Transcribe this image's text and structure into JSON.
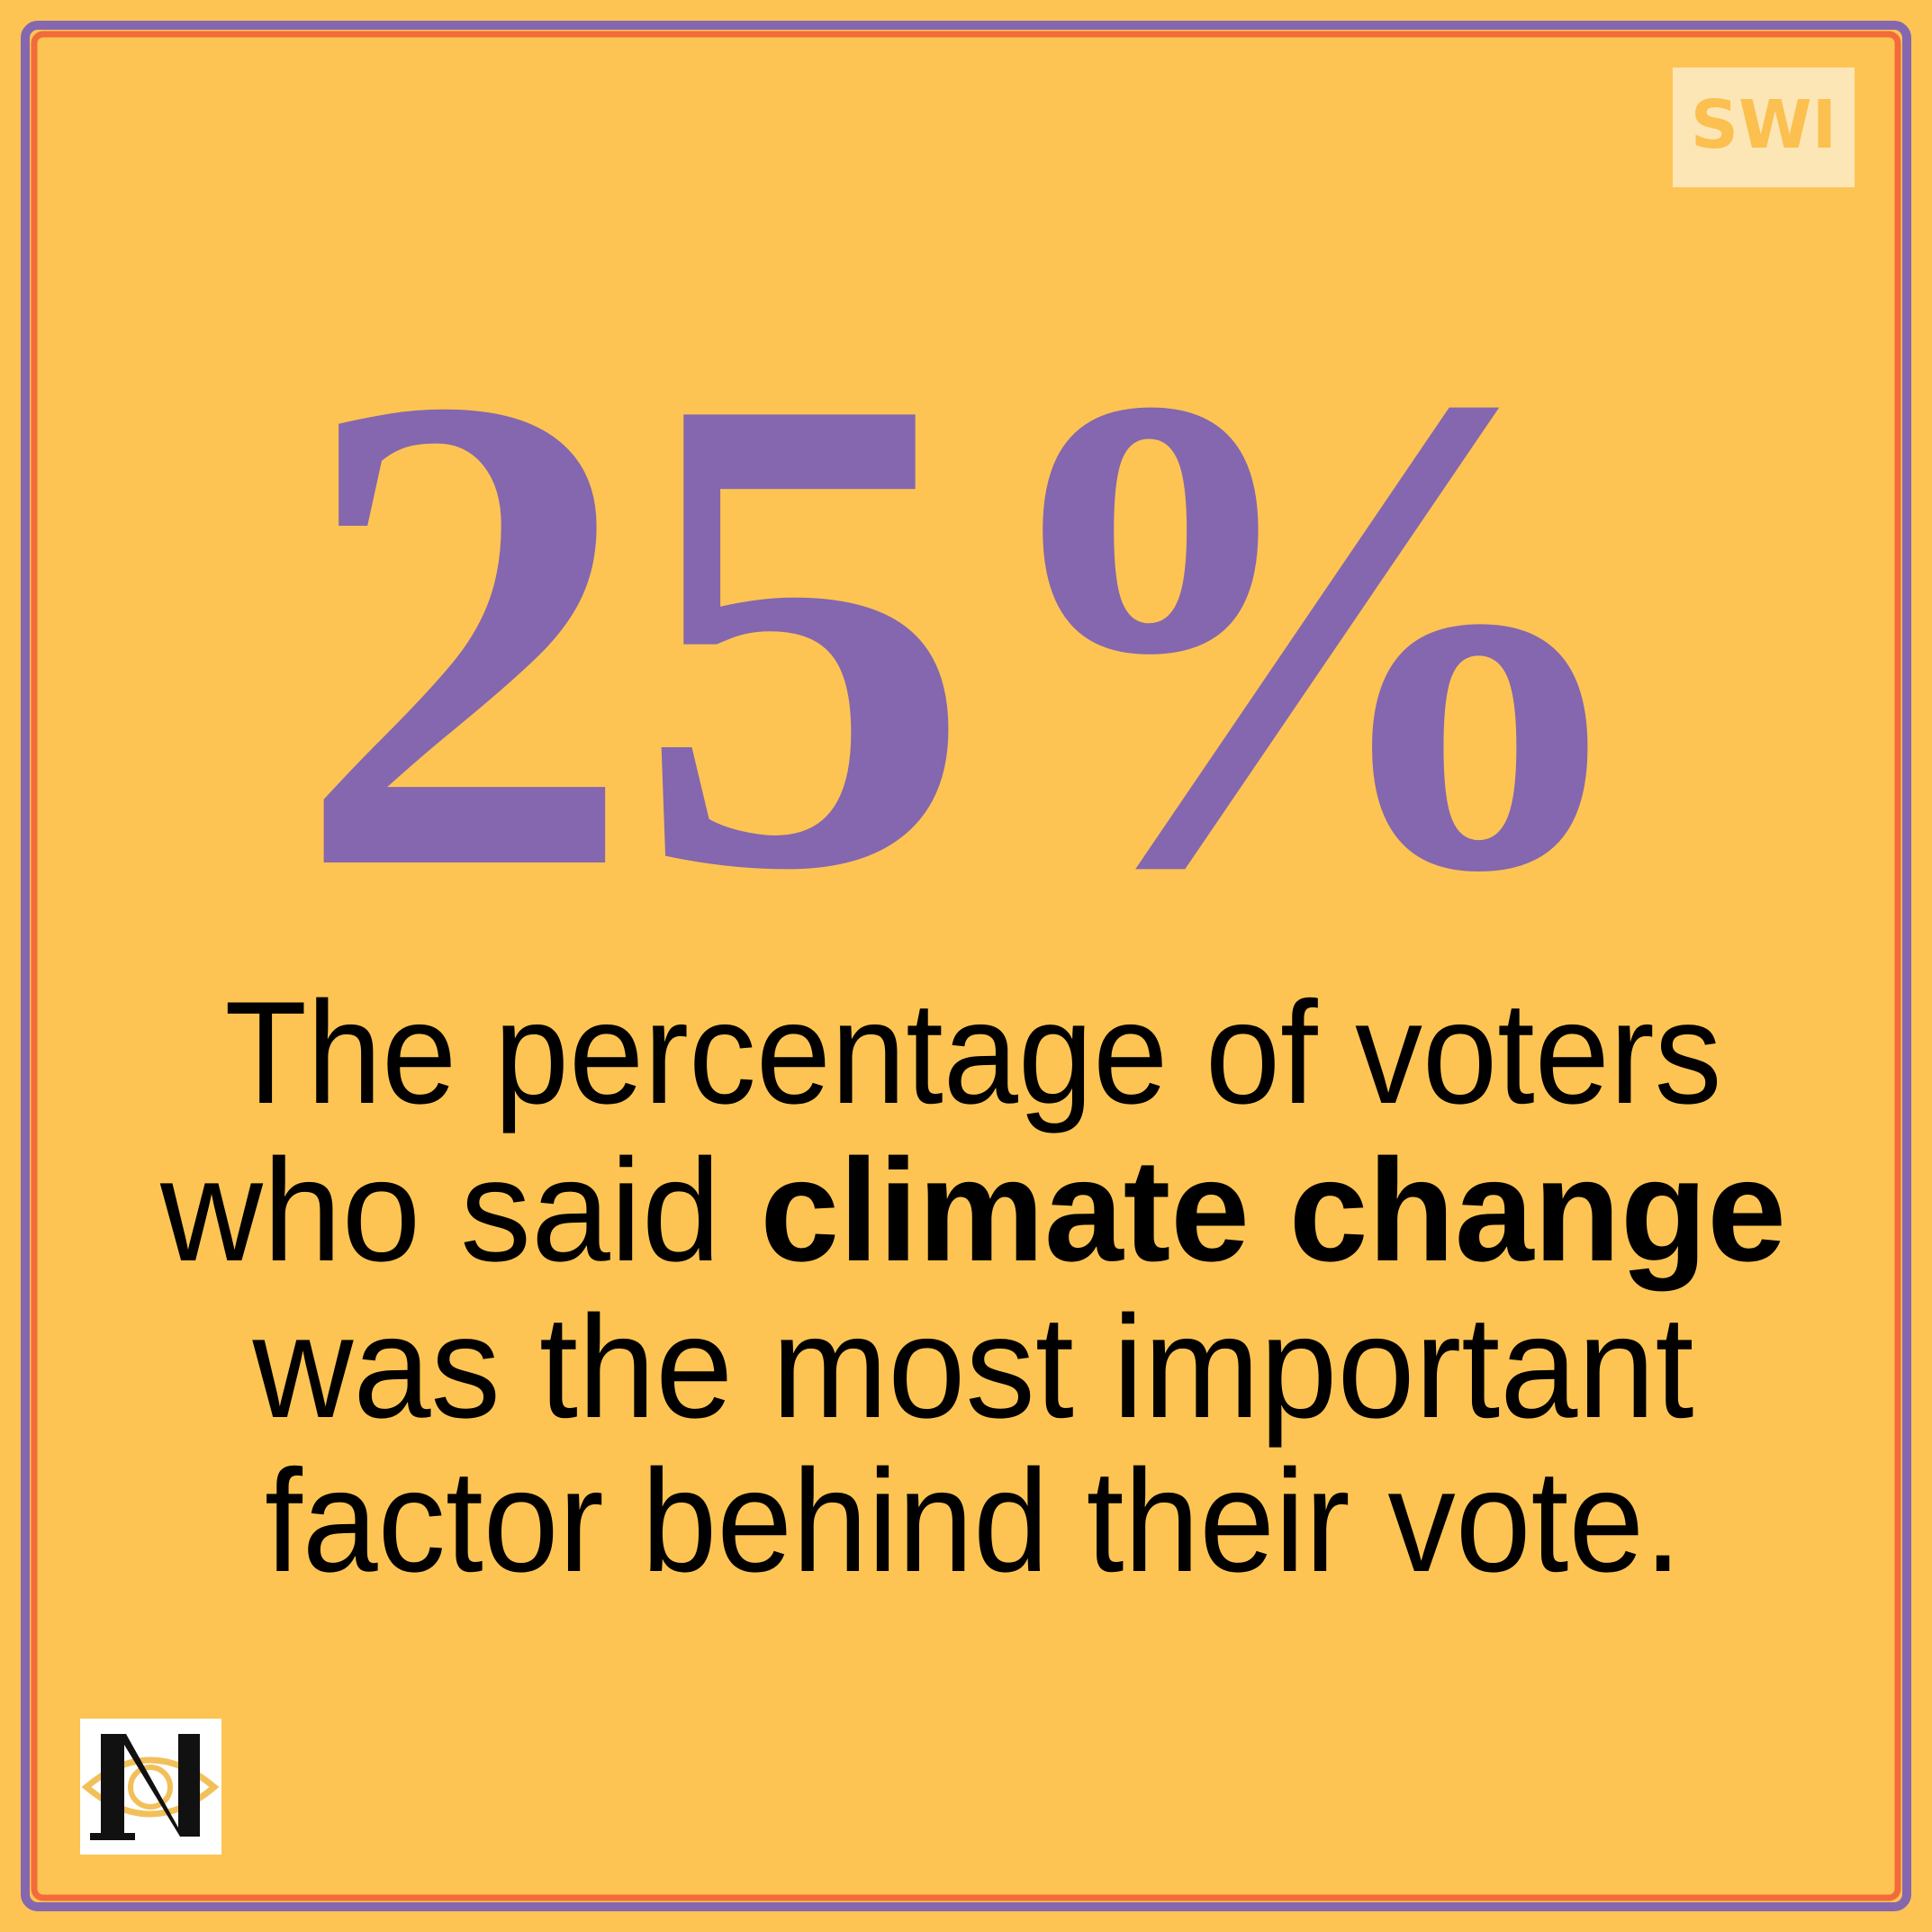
{
  "logo": "SWI",
  "stat": "25%",
  "caption": {
    "lines": [
      [
        {
          "text": "The percentage of voters"
        }
      ],
      [
        {
          "text": "who said "
        },
        {
          "text": "climate change",
          "bold": true
        }
      ],
      [
        {
          "text": "was the most important"
        }
      ],
      [
        {
          "text": "factor behind their vote."
        }
      ]
    ]
  }
}
